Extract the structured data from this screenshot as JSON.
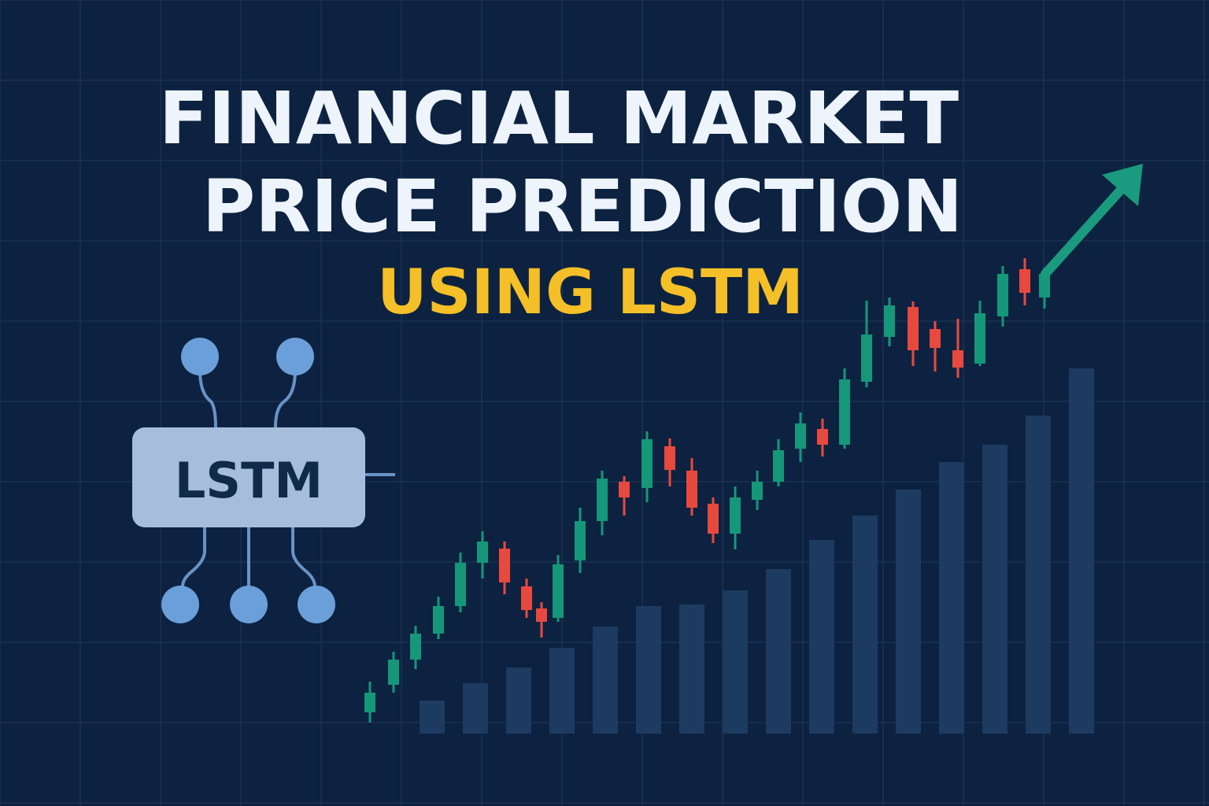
{
  "title": {
    "line1": "FINANCIAL MARKET",
    "line2": "PRICE PREDICTION",
    "line3": "USING LSTM"
  },
  "model_box": {
    "label": "LSTM"
  }
}
